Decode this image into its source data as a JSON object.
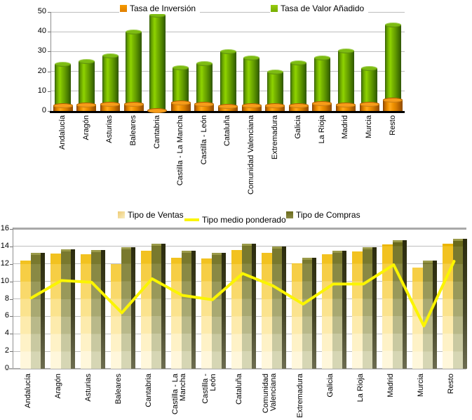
{
  "chart_data": [
    {
      "type": "bar",
      "title": "",
      "categories": [
        "Andalucía",
        "Aragón",
        "Asturias",
        "Baleares",
        "Cantabria",
        "Castilla - La Mancha",
        "Castilla - León",
        "Cataluña",
        "Comunidad Valenciana",
        "Extremadura",
        "Galicia",
        "La Rioja",
        "Madrid",
        "Murcia",
        "Resto"
      ],
      "series": [
        {
          "name": "Tasa de Inversión",
          "type": "bar",
          "color": "#F08A00",
          "values": [
            2.8,
            3.2,
            3.5,
            3.5,
            0.5,
            4.3,
            3.7,
            2.5,
            2.8,
            3.0,
            2.9,
            4.0,
            3.2,
            3.5,
            5.6
          ]
        },
        {
          "name": "Tasa de Valor Añadido",
          "type": "bar",
          "color": "#7AB800",
          "values": [
            23.7,
            25.3,
            28.0,
            40.0,
            48.7,
            22.0,
            24.0,
            30.2,
            27.1,
            19.8,
            24.5,
            26.8,
            30.5,
            21.5,
            43.5
          ]
        }
      ],
      "xlabel": "",
      "ylabel": "",
      "ylim": [
        0,
        50
      ],
      "y_ticks": [
        0,
        10,
        20,
        30,
        40,
        50
      ],
      "grid": true,
      "legend_position": "top"
    },
    {
      "type": "bar+line",
      "title": "",
      "categories": [
        "Andalucía",
        "Aragón",
        "Asturias",
        "Baleares",
        "Cantabria",
        "Castilla - La\nMancha",
        "Castilla -\nLeón",
        "Cataluña",
        "Comunidad\nValenciana",
        "Extremadura",
        "Galicia",
        "La Rioja",
        "Madrid",
        "Murcia",
        "Resto"
      ],
      "series": [
        {
          "name": "Tipo de Ventas",
          "type": "bar",
          "color": "#F2C11C",
          "values": [
            12.4,
            13.2,
            13.1,
            12.0,
            13.5,
            12.7,
            12.6,
            13.6,
            13.3,
            12.1,
            13.1,
            13.4,
            14.2,
            11.6,
            14.3
          ]
        },
        {
          "name": "Tipo de Compras",
          "type": "bar",
          "color": "#79792E",
          "values": [
            13.3,
            13.7,
            13.6,
            13.9,
            14.3,
            13.5,
            13.3,
            14.3,
            14.0,
            12.7,
            13.5,
            13.9,
            14.7,
            12.4,
            14.9
          ]
        },
        {
          "name": "Tipo medio ponderado",
          "type": "line",
          "color": "#FBF500",
          "values": [
            8.1,
            10.1,
            9.9,
            6.4,
            10.3,
            8.4,
            7.9,
            10.9,
            9.5,
            7.4,
            9.7,
            9.7,
            11.9,
            4.9,
            12.3
          ]
        }
      ],
      "xlabel": "",
      "ylabel": "",
      "ylim": [
        0,
        16
      ],
      "y_ticks": [
        0,
        2,
        4,
        6,
        8,
        10,
        12,
        14,
        16
      ],
      "grid": true,
      "legend_position": "top"
    }
  ]
}
